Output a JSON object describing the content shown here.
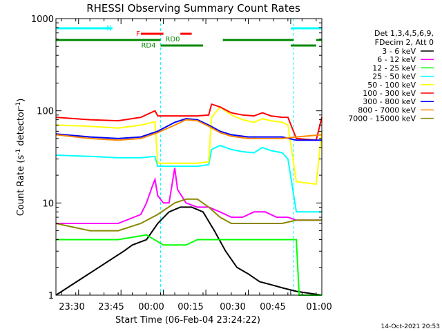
{
  "chart_data": {
    "type": "line",
    "title": "RHESSI Observing Summary Count Rates",
    "xlabel": "Start Time (06-Feb-04 23:24:22)",
    "ylabel_main": "Count Rate (s",
    "ylabel_sup1": "-1",
    "ylabel_mid": " detector",
    "ylabel_sup2": "-1",
    "ylabel_end": ")",
    "y_scale": "log",
    "ylim": [
      1,
      1000
    ],
    "xlim_minutes": [
      -22,
      72
    ],
    "x_tick_labels": [
      {
        "label": "23:30",
        "x": -14
      },
      {
        "label": "23:45",
        "x": 1
      },
      {
        "label": "00:00",
        "x": 16
      },
      {
        "label": "00:15",
        "x": 31
      },
      {
        "label": "00:30",
        "x": 46
      },
      {
        "label": "00:45",
        "x": 61
      },
      {
        "label": "01:00",
        "x": 76
      }
    ],
    "y_tick_labels": [
      {
        "label": "1",
        "y": 1
      },
      {
        "label": "10",
        "y": 10
      },
      {
        "label": "100",
        "y": 100
      },
      {
        "label": "1000",
        "y": 1000
      }
    ],
    "legend_title": [
      "Det 1,3,4,5,6,9,",
      "FDecim 2, Att 0"
    ],
    "legend_position": "right",
    "timestamp": "14-Oct-2021 20:53",
    "flag_labels": {
      "N": "N",
      "F": "F",
      "RD0": "RD0",
      "RD4": "RD4"
    },
    "vlines_minutes": [
      {
        "x": 15,
        "style": "dashed"
      },
      {
        "x": 62,
        "style": "dashed"
      },
      {
        "x": 78,
        "style": "dashed"
      }
    ],
    "series": [
      {
        "name": "3 - 6 keV",
        "color": "#000000",
        "points": [
          [
            -22,
            1
          ],
          [
            2,
            3
          ],
          [
            5,
            3.5
          ],
          [
            10,
            4
          ],
          [
            14,
            6
          ],
          [
            18,
            8
          ],
          [
            22,
            9
          ],
          [
            26,
            9
          ],
          [
            30,
            8
          ],
          [
            34,
            5
          ],
          [
            38,
            3
          ],
          [
            42,
            2
          ],
          [
            46,
            1.7
          ],
          [
            50,
            1.4
          ],
          [
            54,
            1.3
          ],
          [
            58,
            1.2
          ],
          [
            63,
            1.1
          ],
          [
            72,
            1
          ]
        ]
      },
      {
        "name": "6 - 12 keV",
        "color": "#ff00ff",
        "points": [
          [
            -22,
            6
          ],
          [
            -10,
            6
          ],
          [
            0,
            6
          ],
          [
            8,
            7.5
          ],
          [
            10,
            10
          ],
          [
            12,
            15
          ],
          [
            13,
            18
          ],
          [
            14,
            12
          ],
          [
            16,
            10
          ],
          [
            18,
            10
          ],
          [
            20,
            24
          ],
          [
            21,
            14
          ],
          [
            24,
            10
          ],
          [
            28,
            9
          ],
          [
            32,
            9
          ],
          [
            36,
            8
          ],
          [
            40,
            7
          ],
          [
            44,
            7
          ],
          [
            48,
            8
          ],
          [
            52,
            8
          ],
          [
            56,
            7
          ],
          [
            60,
            7
          ],
          [
            63,
            6.5
          ],
          [
            72,
            6.5
          ]
        ]
      },
      {
        "name": "12 - 25 keV",
        "color": "#00ff00",
        "points": [
          [
            -22,
            4
          ],
          [
            -10,
            4
          ],
          [
            0,
            4
          ],
          [
            10,
            4.5
          ],
          [
            16,
            3.5
          ],
          [
            20,
            3.5
          ],
          [
            24,
            3.5
          ],
          [
            28,
            4
          ],
          [
            34,
            4
          ],
          [
            40,
            4
          ],
          [
            46,
            4
          ],
          [
            52,
            4
          ],
          [
            58,
            4
          ],
          [
            63,
            4
          ],
          [
            64,
            1
          ],
          [
            72,
            1
          ]
        ]
      },
      {
        "name": "25 - 50 keV",
        "color": "#00ffff",
        "points": [
          [
            -22,
            33
          ],
          [
            -10,
            32
          ],
          [
            0,
            31
          ],
          [
            8,
            31
          ],
          [
            13,
            32
          ],
          [
            14,
            25
          ],
          [
            20,
            25
          ],
          [
            28,
            25
          ],
          [
            32,
            26
          ],
          [
            33,
            38
          ],
          [
            36,
            42
          ],
          [
            40,
            38
          ],
          [
            44,
            36
          ],
          [
            48,
            35
          ],
          [
            51,
            40
          ],
          [
            54,
            37
          ],
          [
            58,
            35
          ],
          [
            60,
            30
          ],
          [
            63,
            8
          ],
          [
            72,
            8
          ]
        ]
      },
      {
        "name": "50 - 100 keV",
        "color": "#ffff00",
        "points": [
          [
            -22,
            70
          ],
          [
            -10,
            68
          ],
          [
            0,
            65
          ],
          [
            8,
            70
          ],
          [
            13,
            76
          ],
          [
            14,
            27
          ],
          [
            20,
            27
          ],
          [
            28,
            27
          ],
          [
            32,
            28
          ],
          [
            33,
            85
          ],
          [
            36,
            110
          ],
          [
            40,
            90
          ],
          [
            44,
            80
          ],
          [
            48,
            75
          ],
          [
            51,
            82
          ],
          [
            54,
            78
          ],
          [
            58,
            75
          ],
          [
            60,
            70
          ],
          [
            63,
            17
          ],
          [
            70,
            16
          ],
          [
            72,
            60
          ]
        ]
      },
      {
        "name": "100 - 300 keV",
        "color": "#ff0000",
        "points": [
          [
            -22,
            85
          ],
          [
            -10,
            80
          ],
          [
            0,
            78
          ],
          [
            8,
            85
          ],
          [
            13,
            100
          ],
          [
            14,
            88
          ],
          [
            20,
            88
          ],
          [
            28,
            88
          ],
          [
            32,
            90
          ],
          [
            33,
            118
          ],
          [
            36,
            110
          ],
          [
            40,
            95
          ],
          [
            44,
            90
          ],
          [
            48,
            88
          ],
          [
            51,
            95
          ],
          [
            54,
            88
          ],
          [
            58,
            85
          ],
          [
            60,
            85
          ],
          [
            63,
            50
          ],
          [
            70,
            48
          ],
          [
            72,
            85
          ]
        ]
      },
      {
        "name": "300 - 800 keV",
        "color": "#0000ff",
        "points": [
          [
            -22,
            56
          ],
          [
            -10,
            52
          ],
          [
            0,
            50
          ],
          [
            8,
            52
          ],
          [
            14,
            60
          ],
          [
            20,
            75
          ],
          [
            24,
            82
          ],
          [
            28,
            80
          ],
          [
            32,
            70
          ],
          [
            36,
            60
          ],
          [
            40,
            55
          ],
          [
            46,
            52
          ],
          [
            52,
            52
          ],
          [
            58,
            52
          ],
          [
            63,
            48
          ],
          [
            72,
            48
          ]
        ]
      },
      {
        "name": "800 - 7000 keV",
        "color": "#ff8800",
        "points": [
          [
            -22,
            55
          ],
          [
            -10,
            50
          ],
          [
            0,
            48
          ],
          [
            8,
            50
          ],
          [
            14,
            58
          ],
          [
            20,
            70
          ],
          [
            24,
            80
          ],
          [
            28,
            78
          ],
          [
            32,
            68
          ],
          [
            36,
            58
          ],
          [
            40,
            53
          ],
          [
            46,
            50
          ],
          [
            52,
            50
          ],
          [
            58,
            50
          ],
          [
            63,
            52
          ],
          [
            72,
            55
          ]
        ]
      },
      {
        "name": "7000 - 15000 keV",
        "color": "#888800",
        "points": [
          [
            -22,
            6
          ],
          [
            -10,
            5
          ],
          [
            0,
            5
          ],
          [
            8,
            6
          ],
          [
            14,
            7.5
          ],
          [
            20,
            10
          ],
          [
            24,
            11
          ],
          [
            28,
            11
          ],
          [
            32,
            9
          ],
          [
            36,
            7
          ],
          [
            40,
            6
          ],
          [
            46,
            6
          ],
          [
            52,
            6
          ],
          [
            58,
            6
          ],
          [
            63,
            6.5
          ],
          [
            72,
            6.5
          ]
        ]
      }
    ],
    "flags": [
      {
        "name": "N",
        "color": "#00ffff",
        "segments": [
          [
            -22,
            -2
          ],
          [
            61,
            72
          ]
        ],
        "level": "top"
      },
      {
        "name": "F",
        "color": "#ff0000",
        "segments": [
          [
            8,
            16
          ],
          [
            22,
            26
          ]
        ],
        "level": "upper"
      },
      {
        "name": "RD0",
        "color": "#008800",
        "segments": [
          [
            -22,
            15
          ],
          [
            37,
            62
          ],
          [
            70,
            72
          ]
        ],
        "level": "middle"
      },
      {
        "name": "RD4",
        "color": "#008800",
        "segments": [
          [
            15,
            30
          ],
          [
            61,
            70
          ]
        ],
        "level": "lower"
      }
    ]
  }
}
